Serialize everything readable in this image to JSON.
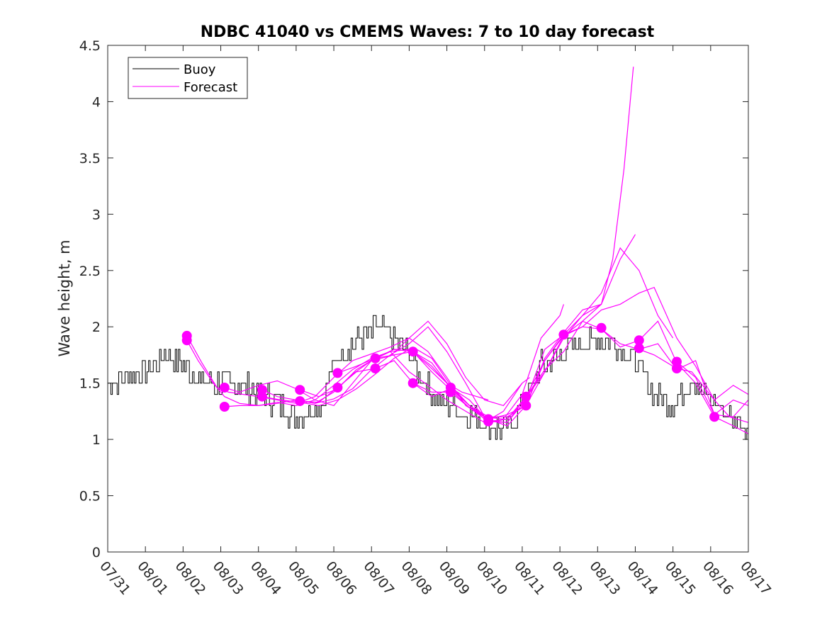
{
  "chart_data": {
    "type": "line",
    "title": "NDBC 41040 vs CMEMS Waves: 7 to 10 day forecast",
    "xlabel": "",
    "ylabel": "Wave height, m",
    "xlim": [
      0,
      17
    ],
    "ylim": [
      0,
      4.5
    ],
    "x_unit": "days since 07/31",
    "x_tick_labels": [
      "07/31",
      "08/01",
      "08/02",
      "08/03",
      "08/04",
      "08/05",
      "08/06",
      "08/07",
      "08/08",
      "08/09",
      "08/10",
      "08/11",
      "08/12",
      "08/13",
      "08/14",
      "08/15",
      "08/16",
      "08/17"
    ],
    "y_ticks": [
      0,
      0.5,
      1,
      1.5,
      2,
      2.5,
      3,
      3.5,
      4,
      4.5
    ],
    "y_tick_labels": [
      "0",
      "0.5",
      "1",
      "1.5",
      "2",
      "2.5",
      "3",
      "3.5",
      "4",
      "4.5"
    ],
    "grid": false,
    "legend": {
      "position": "top-left",
      "entries": [
        {
          "label": "Buoy",
          "color": "#000000"
        },
        {
          "label": "Forecast",
          "color": "#ff00ff"
        }
      ]
    },
    "colors": {
      "buoy": "#000000",
      "forecast": "#ff00ff"
    },
    "buoy_profile": {
      "x": [
        0,
        0.5,
        1.0,
        1.5,
        2.0,
        2.5,
        3.0,
        3.5,
        4.0,
        4.5,
        5.0,
        5.4,
        5.7,
        6.0,
        6.5,
        7.0,
        7.2,
        7.5,
        8.0,
        8.5,
        9.0,
        9.5,
        10.0,
        10.3,
        10.6,
        11.0,
        11.5,
        12.0,
        12.5,
        13.0,
        13.5,
        14.0,
        14.5,
        15.0,
        15.5,
        16.0,
        16.5,
        17.0
      ],
      "y": [
        1.5,
        1.55,
        1.62,
        1.75,
        1.68,
        1.5,
        1.5,
        1.48,
        1.42,
        1.32,
        1.2,
        1.25,
        1.35,
        1.7,
        1.85,
        1.95,
        2.0,
        1.9,
        1.75,
        1.45,
        1.3,
        1.22,
        1.15,
        1.1,
        1.12,
        1.3,
        1.65,
        1.75,
        1.85,
        1.88,
        1.85,
        1.7,
        1.4,
        1.3,
        1.55,
        1.35,
        1.2,
        1.15
      ]
    },
    "forecast_series": [
      {
        "name": "Forecast",
        "x": [
          2.1,
          2.4,
          2.8,
          3.1,
          3.5,
          4.0,
          4.5,
          5.0,
          5.5,
          6.0,
          6.5,
          7.0,
          7.5,
          8.0,
          8.5,
          9.0,
          9.4,
          9.8,
          10.1
        ],
        "y": [
          1.88,
          1.7,
          1.5,
          1.38,
          1.32,
          1.3,
          1.33,
          1.3,
          1.35,
          1.48,
          1.62,
          1.72,
          1.78,
          1.8,
          1.66,
          1.5,
          1.42,
          1.38,
          1.35
        ]
      },
      {
        "name": "Forecast",
        "x": [
          2.1,
          2.5,
          2.9,
          3.2,
          3.6,
          4.0,
          4.5,
          5.0,
          5.5,
          6.0,
          6.5,
          7.0,
          7.5,
          8.0,
          8.5,
          9.0,
          9.5,
          10.0
        ],
        "y": [
          1.92,
          1.68,
          1.46,
          1.42,
          1.4,
          1.38,
          1.35,
          1.32,
          1.38,
          1.55,
          1.7,
          1.76,
          1.82,
          1.9,
          1.78,
          1.55,
          1.3,
          1.2
        ]
      },
      {
        "name": "Forecast",
        "x": [
          3.1,
          3.5,
          4.0,
          4.5,
          5.0,
          5.5,
          6.0,
          6.5,
          7.0,
          7.5,
          8.0,
          8.5,
          9.0,
          9.5,
          10.0,
          10.5,
          11.0
        ],
        "y": [
          1.29,
          1.3,
          1.3,
          1.32,
          1.35,
          1.32,
          1.42,
          1.58,
          1.7,
          1.74,
          1.9,
          2.05,
          1.85,
          1.55,
          1.35,
          1.3,
          1.5
        ]
      },
      {
        "name": "Forecast",
        "x": [
          3.1,
          3.5,
          4.0,
          4.5,
          5.0,
          5.5,
          6.0,
          6.5,
          7.0,
          7.5,
          8.0,
          8.5,
          9.0,
          9.5,
          10.0,
          10.5,
          11.0,
          11.2
        ],
        "y": [
          1.46,
          1.42,
          1.48,
          1.52,
          1.45,
          1.35,
          1.3,
          1.5,
          1.7,
          1.78,
          1.6,
          1.48,
          1.35,
          1.25,
          1.15,
          1.25,
          1.5,
          1.55
        ]
      },
      {
        "name": "Forecast",
        "x": [
          4.1,
          4.5,
          5.0,
          5.5,
          6.0,
          6.5,
          7.0,
          7.5,
          8.0,
          8.5,
          9.0,
          9.5,
          10.0,
          10.5,
          11.0,
          11.5,
          12.0,
          12.1
        ],
        "y": [
          1.44,
          1.38,
          1.35,
          1.32,
          1.36,
          1.45,
          1.62,
          1.75,
          1.85,
          2.0,
          1.78,
          1.5,
          1.2,
          1.18,
          1.4,
          1.9,
          2.1,
          2.2
        ]
      },
      {
        "name": "Forecast",
        "x": [
          4.1,
          4.6,
          5.1,
          5.6,
          6.1,
          6.6,
          7.1,
          7.6,
          8.1,
          8.6,
          9.1,
          9.6,
          10.1,
          10.6,
          11.1,
          11.6,
          12.1,
          12.6,
          13.1,
          13.1
        ],
        "y": [
          1.38,
          1.35,
          1.33,
          1.3,
          1.35,
          1.45,
          1.58,
          1.72,
          1.82,
          1.72,
          1.48,
          1.3,
          1.17,
          1.15,
          1.35,
          1.8,
          1.93,
          2.1,
          2.2,
          2.2
        ]
      },
      {
        "name": "Forecast",
        "x": [
          5.1,
          5.6,
          6.1,
          6.6,
          7.1,
          7.6,
          8.1,
          8.6,
          9.1,
          9.6,
          10.1,
          10.6,
          11.1,
          11.6,
          12.1,
          12.6,
          13.1,
          13.6,
          14.0
        ],
        "y": [
          1.44,
          1.38,
          1.45,
          1.62,
          1.72,
          1.8,
          1.78,
          1.65,
          1.46,
          1.3,
          1.2,
          1.2,
          1.3,
          1.72,
          1.95,
          2.15,
          2.2,
          2.6,
          2.82
        ]
      },
      {
        "name": "Forecast",
        "x": [
          5.1,
          5.6,
          6.1,
          6.6,
          7.1,
          7.6,
          8.1,
          8.6,
          9.1,
          9.6,
          10.1,
          10.6,
          11.1,
          11.6,
          12.1,
          12.6,
          13.1,
          13.4,
          13.7,
          13.95
        ],
        "y": [
          1.34,
          1.33,
          1.46,
          1.6,
          1.63,
          1.7,
          1.5,
          1.38,
          1.45,
          1.3,
          1.15,
          1.18,
          1.38,
          1.62,
          1.78,
          2.05,
          2.2,
          2.6,
          3.4,
          4.31
        ]
      },
      {
        "name": "Forecast",
        "x": [
          6.1,
          6.6,
          7.1,
          7.6,
          8.1,
          8.6,
          9.1,
          9.6,
          10.1,
          10.6,
          11.1,
          11.6,
          12.1,
          12.6,
          13.1,
          13.6,
          14.1,
          14.6,
          15.0
        ],
        "y": [
          1.59,
          1.65,
          1.72,
          1.8,
          1.78,
          1.68,
          1.46,
          1.3,
          1.18,
          1.22,
          1.3,
          1.6,
          1.9,
          2.1,
          2.3,
          2.7,
          2.5,
          2.1,
          1.9
        ]
      },
      {
        "name": "Forecast",
        "x": [
          7.1,
          7.6,
          8.1,
          8.6,
          9.1,
          9.6,
          10.1,
          10.6,
          11.1,
          11.6,
          12.1,
          12.6,
          13.1,
          13.6,
          14.1,
          14.5,
          15.1,
          15.6,
          16.1,
          16.5,
          17.0
        ],
        "y": [
          1.72,
          1.75,
          1.78,
          1.6,
          1.44,
          1.28,
          1.16,
          1.15,
          1.38,
          1.7,
          1.93,
          2.0,
          2.15,
          2.2,
          2.3,
          2.35,
          1.9,
          1.65,
          1.35,
          1.2,
          1.15
        ]
      },
      {
        "name": "Forecast",
        "x": [
          8.1,
          8.6,
          9.1,
          9.6,
          10.1,
          10.6,
          11.1,
          11.6,
          12.1,
          12.6,
          13.1,
          13.6,
          14.1,
          14.6,
          15.1,
          15.6,
          16.1,
          16.6,
          17.0
        ],
        "y": [
          1.5,
          1.42,
          1.42,
          1.28,
          1.18,
          1.12,
          1.3,
          1.7,
          1.92,
          2.05,
          1.98,
          1.82,
          1.88,
          2.05,
          1.68,
          1.5,
          1.2,
          1.12,
          1.05
        ]
      },
      {
        "name": "Forecast",
        "x": [
          9.1,
          9.6,
          10.1,
          10.6,
          11.1,
          11.6,
          12.1,
          12.6,
          13.1,
          13.6,
          14.1,
          14.6,
          15.1,
          15.6,
          16.1,
          16.6,
          17.0
        ],
        "y": [
          1.46,
          1.35,
          1.16,
          1.18,
          1.37,
          1.6,
          1.92,
          2.0,
          1.98,
          1.85,
          1.8,
          1.85,
          1.62,
          1.7,
          1.22,
          1.2,
          1.35
        ]
      },
      {
        "name": "Forecast",
        "x": [
          14.1,
          14.5,
          15.1,
          15.5,
          16.1,
          16.6,
          17.0
        ],
        "y": [
          1.8,
          1.75,
          1.63,
          1.6,
          1.35,
          1.48,
          1.4
        ]
      },
      {
        "name": "Forecast",
        "x": [
          15.1,
          15.6,
          16.1,
          16.6,
          17.0
        ],
        "y": [
          1.69,
          1.55,
          1.22,
          1.35,
          1.3
        ]
      }
    ],
    "forecast_markers": {
      "x": [
        2.1,
        2.1,
        3.1,
        3.1,
        4.1,
        4.1,
        5.1,
        5.1,
        6.1,
        6.1,
        7.1,
        7.1,
        8.1,
        8.1,
        9.1,
        9.1,
        10.1,
        10.1,
        11.1,
        11.1,
        12.1,
        13.1,
        14.1,
        14.1,
        15.1,
        15.1,
        16.1
      ],
      "y": [
        1.92,
        1.88,
        1.46,
        1.29,
        1.44,
        1.38,
        1.44,
        1.34,
        1.59,
        1.46,
        1.72,
        1.63,
        1.78,
        1.5,
        1.46,
        1.42,
        1.18,
        1.16,
        1.38,
        1.3,
        1.93,
        1.99,
        1.88,
        1.81,
        1.69,
        1.63,
        1.2
      ]
    }
  }
}
